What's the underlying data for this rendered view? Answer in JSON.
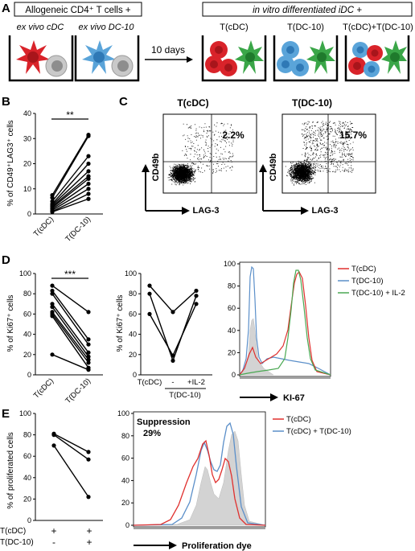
{
  "panels": {
    "A": {
      "label": "A",
      "left_header": "Allogeneic CD4⁺ T cells +",
      "right_header": "in vitro differentiated iDC +",
      "arrow_text": "10 days",
      "wells_left": [
        "ex vivo cDC",
        "ex vivo DC-10"
      ],
      "wells_right": [
        "T(cDC)",
        "T(DC-10)",
        "T(cDC)+T(DC-10)"
      ],
      "colors": {
        "cdc_cell": "#d9232a",
        "dc10_cell": "#5aa4d9",
        "t_cell": "#bdbdbd",
        "green_cell": "#3aa648"
      }
    },
    "B": {
      "label": "B",
      "ylabel": "% of CD49⁺LAG3⁺ cells",
      "yticks": [
        "0",
        "10",
        "20",
        "30",
        "40"
      ],
      "xticks": [
        "T(cDC)",
        "T(DC-10)"
      ],
      "significance": "**"
    },
    "C": {
      "label": "C",
      "plots": [
        {
          "title": "T(cDC)",
          "percent": "2.2%"
        },
        {
          "title": "T(DC-10)",
          "percent": "15.7%"
        }
      ],
      "ylabel": "CD49b",
      "xlabel": "LAG-3"
    },
    "D": {
      "label": "D",
      "left": {
        "ylabel": "% of Ki67⁺ cells",
        "yticks": [
          "0",
          "20",
          "40",
          "60",
          "80",
          "100"
        ],
        "xticks": [
          "T(cDC)",
          "T(DC-10)"
        ],
        "significance": "***"
      },
      "mid": {
        "ylabel": "% of Ki67⁺ cells",
        "yticks": [
          "0",
          "20",
          "40",
          "60",
          "80",
          "100"
        ],
        "xticks": [
          "T(cDC)",
          "-",
          "+IL-2"
        ],
        "group_label": "T(DC-10)"
      },
      "hist": {
        "xlabel": "KI-67",
        "yticks": [
          "0",
          "20",
          "40",
          "60",
          "80",
          "100"
        ],
        "legend": [
          "T(cDC)",
          "T(DC-10)",
          "T(DC-10) + IL-2"
        ],
        "colors": [
          "#e0302e",
          "#5b8fc9",
          "#4aa852"
        ]
      }
    },
    "E": {
      "label": "E",
      "ylabel": "% of proliferated cells",
      "yticks": [
        "0",
        "20",
        "40",
        "60",
        "80",
        "100"
      ],
      "row_labels": [
        "T(cDC)",
        "T(DC-10)"
      ],
      "row_signs": [
        [
          "+",
          "+"
        ],
        [
          "-",
          "+"
        ]
      ],
      "hist": {
        "yticks": [
          "0",
          "20",
          "40",
          "60",
          "80",
          "100"
        ],
        "annotation": "Suppression",
        "annotation_value": "29%",
        "legend": [
          "T(cDC)",
          "T(cDC) + T(DC-10)"
        ],
        "colors": [
          "#e0302e",
          "#5b8fc9"
        ],
        "xlabel": "Proliferation dye"
      }
    }
  },
  "chart_data": [
    {
      "type": "line",
      "panel": "B",
      "categories": [
        "T(cDC)",
        "T(DC-10)"
      ],
      "ylim": [
        0,
        40
      ],
      "series": [
        {
          "values": [
            7.5,
            31.5
          ]
        },
        {
          "values": [
            6.5,
            31
          ]
        },
        {
          "values": [
            5,
            23
          ]
        },
        {
          "values": [
            4,
            20
          ]
        },
        {
          "values": [
            3.5,
            17
          ]
        },
        {
          "values": [
            3,
            15
          ]
        },
        {
          "values": [
            2.5,
            14
          ]
        },
        {
          "values": [
            2,
            12
          ]
        },
        {
          "values": [
            1.5,
            10
          ]
        },
        {
          "values": [
            1,
            8
          ]
        },
        {
          "values": [
            0.8,
            6
          ]
        }
      ]
    },
    {
      "type": "line",
      "panel": "D-left",
      "categories": [
        "T(cDC)",
        "T(DC-10)"
      ],
      "ylim": [
        0,
        100
      ],
      "series": [
        {
          "values": [
            88,
            62
          ]
        },
        {
          "values": [
            83,
            35
          ]
        },
        {
          "values": [
            80,
            30
          ]
        },
        {
          "values": [
            70,
            22
          ]
        },
        {
          "values": [
            67,
            18
          ]
        },
        {
          "values": [
            62,
            15
          ]
        },
        {
          "values": [
            60,
            12
          ]
        },
        {
          "values": [
            58,
            7
          ]
        },
        {
          "values": [
            20,
            5
          ]
        }
      ]
    },
    {
      "type": "line",
      "panel": "D-mid",
      "categories": [
        "T(cDC)",
        "-",
        "+IL-2"
      ],
      "ylim": [
        0,
        100
      ],
      "series": [
        {
          "values": [
            88,
            62,
            83
          ]
        },
        {
          "values": [
            80,
            14,
            78
          ]
        },
        {
          "values": [
            60,
            19,
            70
          ]
        }
      ]
    },
    {
      "type": "line",
      "panel": "E-left",
      "categories": [
        "T(cDC) + / T(DC-10) -",
        "T(cDC) + / T(DC-10) +"
      ],
      "ylim": [
        0,
        100
      ],
      "series": [
        {
          "values": [
            81,
            64
          ]
        },
        {
          "values": [
            80,
            57
          ]
        },
        {
          "values": [
            70,
            22
          ]
        }
      ]
    }
  ]
}
